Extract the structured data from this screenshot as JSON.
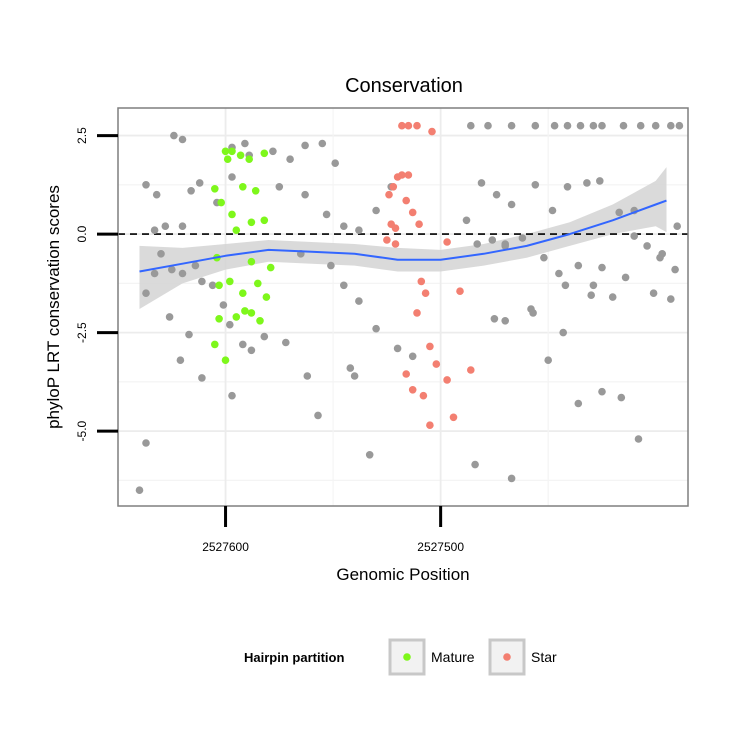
{
  "chart_data": {
    "type": "scatter",
    "title": "Conservation",
    "xlabel": "Genomic Position",
    "ylabel": "phyloP LRT conservation scores",
    "x_axis": {
      "reversed": true,
      "xlim": [
        2527650,
        2527385
      ],
      "ticks": [
        2527600,
        2527500
      ],
      "tick_labels": [
        "2527600",
        "2527500"
      ]
    },
    "y_axis": {
      "ylim": [
        -6.9,
        3.2
      ],
      "ticks": [
        2.5,
        0,
        -2.5,
        -5
      ],
      "tick_labels": [
        "2.5",
        "0.0",
        "-2.5",
        "-5.0"
      ]
    },
    "grid": true,
    "reference_line": {
      "y": 0,
      "style": "dashed"
    },
    "legend": {
      "title": "Hairpin partition",
      "position": "bottom",
      "entries": [
        {
          "label": "Mature",
          "color": "#7ef71b"
        },
        {
          "label": "Star",
          "color": "#f37f71"
        }
      ]
    },
    "colors": {
      "background": "#999999",
      "mature": "#7ef71b",
      "star": "#f37f71",
      "smooth": "#3366ff",
      "ribbon": "#d4d4d4"
    },
    "series": [
      {
        "name": "Mature",
        "points": [
          {
            "x": 2527600,
            "y": 2.1
          },
          {
            "x": 2527597,
            "y": 2.1
          },
          {
            "x": 2527593,
            "y": 2.0
          },
          {
            "x": 2527599,
            "y": 1.9
          },
          {
            "x": 2527589,
            "y": 1.9
          },
          {
            "x": 2527582,
            "y": 2.05
          },
          {
            "x": 2527605,
            "y": 1.15
          },
          {
            "x": 2527592,
            "y": 1.2
          },
          {
            "x": 2527586,
            "y": 1.1
          },
          {
            "x": 2527602,
            "y": 0.8
          },
          {
            "x": 2527597,
            "y": 0.5
          },
          {
            "x": 2527588,
            "y": 0.3
          },
          {
            "x": 2527595,
            "y": 0.1
          },
          {
            "x": 2527582,
            "y": 0.35
          },
          {
            "x": 2527604,
            "y": -0.6
          },
          {
            "x": 2527588,
            "y": -0.7
          },
          {
            "x": 2527579,
            "y": -0.85
          },
          {
            "x": 2527598,
            "y": -1.2
          },
          {
            "x": 2527585,
            "y": -1.25
          },
          {
            "x": 2527603,
            "y": -1.3
          },
          {
            "x": 2527592,
            "y": -1.5
          },
          {
            "x": 2527581,
            "y": -1.6
          },
          {
            "x": 2527591,
            "y": -1.95
          },
          {
            "x": 2527588,
            "y": -2.0
          },
          {
            "x": 2527595,
            "y": -2.1
          },
          {
            "x": 2527603,
            "y": -2.15
          },
          {
            "x": 2527584,
            "y": -2.2
          },
          {
            "x": 2527605,
            "y": -2.8
          },
          {
            "x": 2527600,
            "y": -3.2
          }
        ]
      },
      {
        "name": "Star",
        "points": [
          {
            "x": 2527518,
            "y": 2.75
          },
          {
            "x": 2527515,
            "y": 2.75
          },
          {
            "x": 2527511,
            "y": 2.75
          },
          {
            "x": 2527504,
            "y": 2.6
          },
          {
            "x": 2527515,
            "y": 1.5
          },
          {
            "x": 2527518,
            "y": 1.5
          },
          {
            "x": 2527520,
            "y": 1.45
          },
          {
            "x": 2527522,
            "y": 1.2
          },
          {
            "x": 2527524,
            "y": 1.0
          },
          {
            "x": 2527516,
            "y": 0.85
          },
          {
            "x": 2527513,
            "y": 0.55
          },
          {
            "x": 2527510,
            "y": 0.25
          },
          {
            "x": 2527523,
            "y": 0.25
          },
          {
            "x": 2527521,
            "y": 0.15
          },
          {
            "x": 2527525,
            "y": -0.15
          },
          {
            "x": 2527521,
            "y": -0.25
          },
          {
            "x": 2527497,
            "y": -0.2
          },
          {
            "x": 2527509,
            "y": -1.2
          },
          {
            "x": 2527507,
            "y": -1.5
          },
          {
            "x": 2527511,
            "y": -2.0
          },
          {
            "x": 2527491,
            "y": -1.45
          },
          {
            "x": 2527505,
            "y": -2.85
          },
          {
            "x": 2527516,
            "y": -3.55
          },
          {
            "x": 2527513,
            "y": -3.95
          },
          {
            "x": 2527502,
            "y": -3.3
          },
          {
            "x": 2527497,
            "y": -3.7
          },
          {
            "x": 2527486,
            "y": -3.45
          },
          {
            "x": 2527508,
            "y": -4.1
          },
          {
            "x": 2527494,
            "y": -4.65
          },
          {
            "x": 2527505,
            "y": -4.85
          }
        ]
      },
      {
        "name": "",
        "points": [
          {
            "x": 2527637,
            "y": 1.25
          },
          {
            "x": 2527632,
            "y": 1.0
          },
          {
            "x": 2527628,
            "y": 0.2
          },
          {
            "x": 2527633,
            "y": 0.1
          },
          {
            "x": 2527620,
            "y": 0.2
          },
          {
            "x": 2527616,
            "y": 1.1
          },
          {
            "x": 2527612,
            "y": 1.3
          },
          {
            "x": 2527604,
            "y": 0.8
          },
          {
            "x": 2527597,
            "y": 1.45
          },
          {
            "x": 2527591,
            "y": 2.3
          },
          {
            "x": 2527630,
            "y": -0.5
          },
          {
            "x": 2527625,
            "y": -0.9
          },
          {
            "x": 2527620,
            "y": -1.0
          },
          {
            "x": 2527614,
            "y": -0.8
          },
          {
            "x": 2527611,
            "y": -1.2
          },
          {
            "x": 2527606,
            "y": -1.3
          },
          {
            "x": 2527601,
            "y": -1.8
          },
          {
            "x": 2527598,
            "y": -2.3
          },
          {
            "x": 2527637,
            "y": -1.5
          },
          {
            "x": 2527633,
            "y": -1.0
          },
          {
            "x": 2527626,
            "y": -2.1
          },
          {
            "x": 2527621,
            "y": -3.2
          },
          {
            "x": 2527617,
            "y": -2.55
          },
          {
            "x": 2527611,
            "y": -3.65
          },
          {
            "x": 2527597,
            "y": -4.1
          },
          {
            "x": 2527592,
            "y": -2.8
          },
          {
            "x": 2527588,
            "y": -2.95
          },
          {
            "x": 2527582,
            "y": -2.6
          },
          {
            "x": 2527572,
            "y": -2.75
          },
          {
            "x": 2527640,
            "y": -6.5
          },
          {
            "x": 2527637,
            "y": -5.3
          },
          {
            "x": 2527624,
            "y": 2.5
          },
          {
            "x": 2527620,
            "y": 2.4
          },
          {
            "x": 2527597,
            "y": 2.2
          },
          {
            "x": 2527589,
            "y": 2.0
          },
          {
            "x": 2527578,
            "y": 2.1
          },
          {
            "x": 2527570,
            "y": 1.9
          },
          {
            "x": 2527563,
            "y": 2.25
          },
          {
            "x": 2527555,
            "y": 2.3
          },
          {
            "x": 2527549,
            "y": 1.8
          },
          {
            "x": 2527575,
            "y": 1.2
          },
          {
            "x": 2527563,
            "y": 1.0
          },
          {
            "x": 2527553,
            "y": 0.5
          },
          {
            "x": 2527545,
            "y": 0.2
          },
          {
            "x": 2527538,
            "y": 0.1
          },
          {
            "x": 2527530,
            "y": 0.6
          },
          {
            "x": 2527523,
            "y": 1.2
          },
          {
            "x": 2527565,
            "y": -0.5
          },
          {
            "x": 2527551,
            "y": -0.8
          },
          {
            "x": 2527545,
            "y": -1.3
          },
          {
            "x": 2527538,
            "y": -1.7
          },
          {
            "x": 2527530,
            "y": -2.4
          },
          {
            "x": 2527520,
            "y": -2.9
          },
          {
            "x": 2527513,
            "y": -3.1
          },
          {
            "x": 2527562,
            "y": -3.6
          },
          {
            "x": 2527557,
            "y": -4.6
          },
          {
            "x": 2527540,
            "y": -3.6
          },
          {
            "x": 2527533,
            "y": -5.6
          },
          {
            "x": 2527542,
            "y": -3.4
          },
          {
            "x": 2527486,
            "y": 2.75
          },
          {
            "x": 2527478,
            "y": 2.75
          },
          {
            "x": 2527467,
            "y": 2.75
          },
          {
            "x": 2527456,
            "y": 2.75
          },
          {
            "x": 2527447,
            "y": 2.75
          },
          {
            "x": 2527441,
            "y": 2.75
          },
          {
            "x": 2527435,
            "y": 2.75
          },
          {
            "x": 2527429,
            "y": 2.75
          },
          {
            "x": 2527425,
            "y": 2.75
          },
          {
            "x": 2527415,
            "y": 2.75
          },
          {
            "x": 2527407,
            "y": 2.75
          },
          {
            "x": 2527400,
            "y": 2.75
          },
          {
            "x": 2527393,
            "y": 2.75
          },
          {
            "x": 2527389,
            "y": 2.75
          },
          {
            "x": 2527481,
            "y": 1.3
          },
          {
            "x": 2527474,
            "y": 1.0
          },
          {
            "x": 2527467,
            "y": 0.75
          },
          {
            "x": 2527456,
            "y": 1.25
          },
          {
            "x": 2527448,
            "y": 0.6
          },
          {
            "x": 2527441,
            "y": 1.2
          },
          {
            "x": 2527432,
            "y": 1.3
          },
          {
            "x": 2527426,
            "y": 1.35
          },
          {
            "x": 2527417,
            "y": 0.55
          },
          {
            "x": 2527410,
            "y": -0.05
          },
          {
            "x": 2527404,
            "y": -0.3
          },
          {
            "x": 2527397,
            "y": -0.5
          },
          {
            "x": 2527390,
            "y": 0.2
          },
          {
            "x": 2527488,
            "y": 0.35
          },
          {
            "x": 2527483,
            "y": -0.25
          },
          {
            "x": 2527476,
            "y": -0.15
          },
          {
            "x": 2527470,
            "y": -0.25
          },
          {
            "x": 2527462,
            "y": -0.1
          },
          {
            "x": 2527452,
            "y": -0.6
          },
          {
            "x": 2527445,
            "y": -1.0
          },
          {
            "x": 2527436,
            "y": -0.8
          },
          {
            "x": 2527429,
            "y": -1.3
          },
          {
            "x": 2527420,
            "y": -1.6
          },
          {
            "x": 2527414,
            "y": -1.1
          },
          {
            "x": 2527401,
            "y": -1.5
          },
          {
            "x": 2527393,
            "y": -1.65
          },
          {
            "x": 2527391,
            "y": -0.9
          },
          {
            "x": 2527470,
            "y": -2.2
          },
          {
            "x": 2527458,
            "y": -1.9
          },
          {
            "x": 2527450,
            "y": -3.2
          },
          {
            "x": 2527443,
            "y": -2.5
          },
          {
            "x": 2527436,
            "y": -4.3
          },
          {
            "x": 2527425,
            "y": -4.0
          },
          {
            "x": 2527416,
            "y": -4.15
          },
          {
            "x": 2527408,
            "y": -5.2
          },
          {
            "x": 2527484,
            "y": -5.85
          },
          {
            "x": 2527467,
            "y": -6.2
          },
          {
            "x": 2527475,
            "y": -2.15
          },
          {
            "x": 2527457,
            "y": -2.0
          },
          {
            "x": 2527442,
            "y": -1.3
          },
          {
            "x": 2527430,
            "y": -1.55
          },
          {
            "x": 2527398,
            "y": -0.6
          },
          {
            "x": 2527410,
            "y": 0.6
          },
          {
            "x": 2527425,
            "y": -0.85
          },
          {
            "x": 2527470,
            "y": -0.3
          }
        ]
      }
    ],
    "smooth_line": {
      "x": [
        2527640,
        2527620,
        2527600,
        2527580,
        2527560,
        2527540,
        2527520,
        2527500,
        2527480,
        2527460,
        2527440,
        2527420,
        2527400,
        2527395
      ],
      "y": [
        -0.95,
        -0.75,
        -0.55,
        -0.4,
        -0.45,
        -0.5,
        -0.65,
        -0.65,
        -0.5,
        -0.3,
        0.0,
        0.35,
        0.75,
        0.85
      ],
      "upper": [
        -0.3,
        -0.35,
        -0.25,
        -0.15,
        -0.2,
        -0.25,
        -0.35,
        -0.4,
        -0.25,
        0.0,
        0.3,
        0.75,
        1.35,
        1.7
      ],
      "lower": [
        -1.9,
        -1.25,
        -0.9,
        -0.7,
        -0.75,
        -0.8,
        -0.95,
        -0.95,
        -0.8,
        -0.6,
        -0.3,
        0.0,
        0.2,
        0.05
      ]
    }
  }
}
